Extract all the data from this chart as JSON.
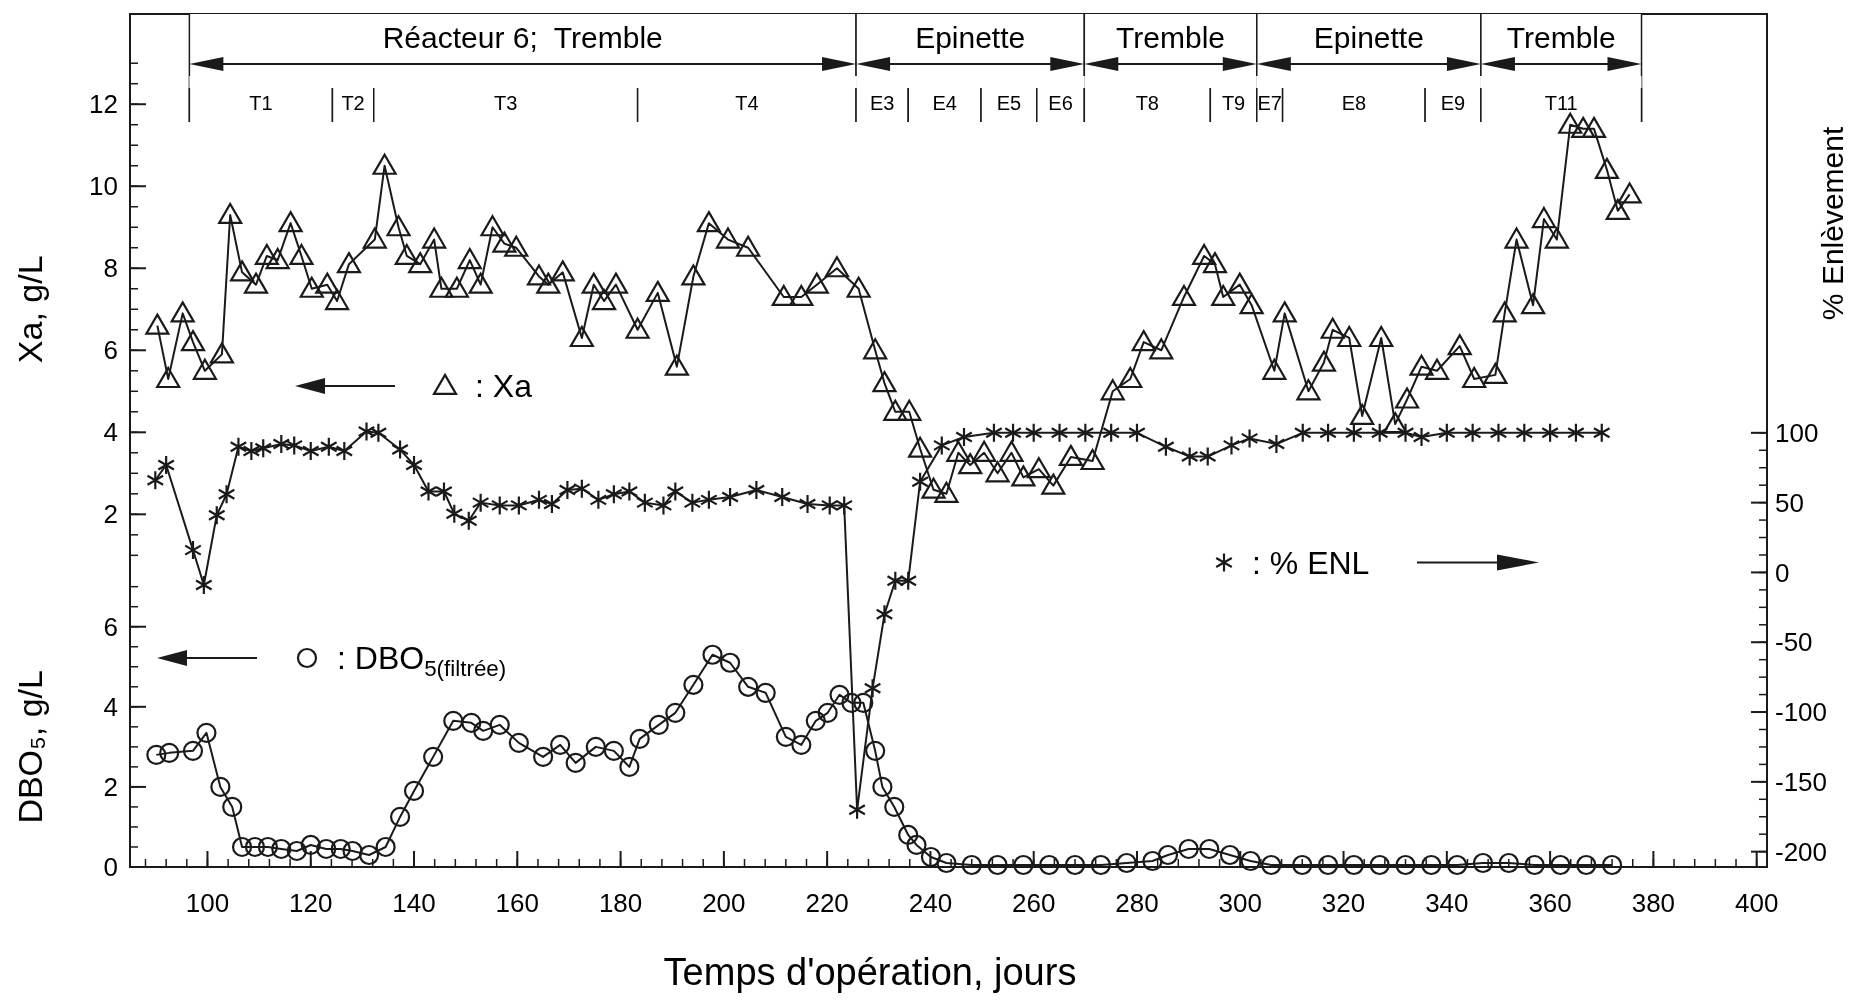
{
  "chart_data": {
    "type": "line",
    "xlabel": "Temps d'opération, jours",
    "ylabel": "Xa, g/L",
    "y3label": "DBO₅, g/L",
    "y2label": "% Enlèvement",
    "xlim": [
      85,
      402
    ],
    "xticks": [
      100,
      120,
      140,
      160,
      180,
      200,
      220,
      240,
      260,
      280,
      300,
      320,
      340,
      360,
      380,
      400
    ],
    "ylim": [
      -6.6,
      14.2
    ],
    "yticks": [
      2,
      4,
      6,
      8,
      10,
      12
    ],
    "y2lim": [
      -211,
      400
    ],
    "y2ticks": [
      -200,
      -150,
      -100,
      -50,
      0,
      50,
      100
    ],
    "y3lim": [
      0,
      21.3
    ],
    "y3ticks": [
      0,
      2,
      4,
      6
    ],
    "legend": "left",
    "grid": false,
    "line_style": "solid",
    "bands": [
      {
        "axis": "x",
        "from": 96.5,
        "to": 225.6,
        "label": "Réacteur 6;  Tremble",
        "color": "#ffffff"
      },
      {
        "axis": "x",
        "from": 225.6,
        "to": 269.8,
        "label": "Epinette",
        "color": "#ffffff"
      },
      {
        "axis": "x",
        "from": 269.8,
        "to": 303.2,
        "label": "Tremble",
        "color": "#ffffff"
      },
      {
        "axis": "x",
        "from": 303.2,
        "to": 346.6,
        "label": "Epinette",
        "color": "#ffffff"
      },
      {
        "axis": "x",
        "from": 346.6,
        "to": 377.7,
        "label": "Tremble",
        "color": "#ffffff"
      },
      {
        "axis": "x",
        "from": 96.5,
        "to": 124.2,
        "label": "T1",
        "color": "#ffffff"
      },
      {
        "axis": "x",
        "from": 124.2,
        "to": 132.2,
        "label": "T2",
        "color": "#ffffff"
      },
      {
        "axis": "x",
        "from": 132.2,
        "to": 183.3,
        "label": "T3",
        "color": "#ffffff"
      },
      {
        "axis": "x",
        "from": 183.3,
        "to": 225.6,
        "label": "T4",
        "color": "#ffffff"
      },
      {
        "axis": "x",
        "from": 225.6,
        "to": 235.7,
        "label": "E3",
        "color": "#ffffff"
      },
      {
        "axis": "x",
        "from": 235.7,
        "to": 249.8,
        "label": "E4",
        "color": "#ffffff"
      },
      {
        "axis": "x",
        "from": 249.8,
        "to": 260.6,
        "label": "E5",
        "color": "#ffffff"
      },
      {
        "axis": "x",
        "from": 260.6,
        "to": 269.8,
        "label": "E6",
        "color": "#ffffff"
      },
      {
        "axis": "x",
        "from": 269.8,
        "to": 294.2,
        "label": "T8",
        "color": "#ffffff"
      },
      {
        "axis": "x",
        "from": 294.2,
        "to": 303.2,
        "label": "T9",
        "color": "#ffffff"
      },
      {
        "axis": "x",
        "from": 303.2,
        "to": 308.2,
        "label": "E7",
        "color": "#ffffff"
      },
      {
        "axis": "x",
        "from": 308.2,
        "to": 335.8,
        "label": "E8",
        "color": "#ffffff"
      },
      {
        "axis": "x",
        "from": 335.8,
        "to": 346.6,
        "label": "E9",
        "color": "#ffffff"
      },
      {
        "axis": "x",
        "from": 346.6,
        "to": 377.7,
        "label": "T11",
        "color": "#ffffff"
      }
    ],
    "series": [
      {
        "name": ": Xa",
        "color": "#1a1a1a",
        "marker": "triangle",
        "axis": "y",
        "x": [
          90.3,
          92.4,
          95.2,
          97.2,
          99.5,
          102.8,
          104.4,
          106.7,
          109.4,
          111.5,
          113.6,
          116.1,
          118.2,
          120.2,
          123.2,
          125.1,
          127.4,
          132.4,
          134.3,
          137.0,
          138.6,
          141.2,
          143.9,
          145.3,
          148.3,
          150.8,
          152.9,
          155.2,
          157.5,
          159.8,
          164.2,
          166.0,
          168.8,
          172.5,
          174.8,
          176.8,
          179.1,
          183.3,
          187.2,
          190.9,
          194.1,
          197.1,
          200.8,
          204.7,
          211.6,
          215.0,
          218.0,
          221.9,
          226.1,
          229.3,
          231.1,
          233.2,
          235.9,
          238.0,
          240.6,
          243.1,
          245.4,
          247.7,
          250.4,
          253.0,
          255.7,
          258.0,
          261.0,
          263.8,
          267.2,
          271.4,
          275.3,
          278.7,
          281.3,
          284.7,
          289.1,
          293.0,
          295.1,
          296.7,
          299.9,
          302.2,
          306.6,
          308.6,
          313.2,
          316.2,
          317.9,
          321.1,
          323.6,
          327.3,
          330.0,
          332.3,
          335.1,
          338.1,
          342.5,
          345.3,
          349.4,
          351.2,
          353.5,
          356.7,
          358.8,
          361.3,
          363.9,
          366.4,
          368.5,
          371.0,
          373.1,
          375.4
        ],
        "values": [
          6.6,
          5.3,
          6.9,
          6.2,
          5.5,
          5.9,
          9.3,
          7.9,
          7.6,
          8.3,
          8.2,
          9.1,
          8.3,
          7.5,
          7.6,
          7.2,
          8.1,
          8.7,
          10.5,
          9.0,
          8.3,
          8.1,
          8.7,
          7.5,
          7.5,
          8.2,
          7.6,
          9.0,
          8.6,
          8.5,
          7.8,
          7.6,
          7.9,
          6.3,
          7.6,
          7.2,
          7.6,
          6.5,
          7.4,
          5.6,
          7.8,
          9.1,
          8.7,
          8.5,
          7.3,
          7.3,
          7.6,
          8.0,
          7.5,
          6.0,
          5.2,
          4.5,
          4.5,
          3.6,
          2.6,
          2.5,
          3.5,
          3.2,
          3.5,
          3.0,
          3.5,
          2.9,
          3.1,
          2.7,
          3.4,
          3.3,
          5.0,
          5.3,
          6.2,
          6.0,
          7.3,
          8.3,
          8.1,
          7.3,
          7.6,
          7.1,
          5.5,
          6.9,
          5.0,
          5.7,
          6.5,
          6.3,
          4.4,
          6.3,
          4.2,
          4.8,
          5.6,
          5.5,
          6.1,
          5.3,
          5.4,
          6.9,
          8.7,
          7.1,
          9.2,
          8.7,
          11.5,
          11.4,
          11.4,
          10.4,
          9.4,
          9.8
        ]
      },
      {
        "name": ": % ENL",
        "color": "#1a1a1a",
        "marker": "cross",
        "axis": "y2",
        "x": [
          89.9,
          92.0,
          97.2,
          99.3,
          101.8,
          103.7,
          106.0,
          108.5,
          110.8,
          114.3,
          116.8,
          120.0,
          123.5,
          126.5,
          130.8,
          133.1,
          137.3,
          140.0,
          142.8,
          145.8,
          147.8,
          150.6,
          152.9,
          156.6,
          160.3,
          164.2,
          166.7,
          169.7,
          172.5,
          175.7,
          178.7,
          181.7,
          184.7,
          188.3,
          190.6,
          193.9,
          197.1,
          201.2,
          206.3,
          211.3,
          216.2,
          220.5,
          223.3,
          225.8,
          228.8,
          231.1,
          233.2,
          235.7,
          238.0,
          242.2,
          246.5,
          252.3,
          256,
          260,
          265,
          270,
          275,
          280,
          285.6,
          290.2,
          293.7,
          298.3,
          301.8,
          307.0,
          312.1,
          317,
          322,
          327,
          332,
          335.1,
          340,
          345,
          350,
          355,
          360,
          365,
          370
        ],
        "values": [
          66,
          77,
          16,
          -9,
          41,
          56,
          90,
          87,
          89,
          92,
          91,
          87,
          90,
          87,
          101,
          100,
          88,
          77,
          58,
          58,
          42,
          37,
          50,
          48,
          48,
          52,
          49,
          59,
          60,
          52,
          56,
          58,
          50,
          48,
          58,
          50,
          52,
          54,
          59,
          54,
          49,
          48,
          48,
          -170,
          -83,
          -30,
          -6,
          -6,
          65,
          91,
          97,
          100,
          100,
          100,
          100,
          100,
          100,
          100,
          90,
          83,
          83,
          91,
          96,
          92,
          100,
          100,
          100,
          100,
          100,
          97,
          100,
          100,
          100,
          100,
          100,
          100,
          100
        ]
      },
      {
        "name": ": DBO$_{5(filtrée)}$",
        "color": "#1a1a1a",
        "marker": "circle",
        "axis": "y3",
        "x": [
          90.1,
          92.6,
          97.2,
          99.8,
          102.5,
          104.8,
          106.7,
          109.2,
          111.7,
          114.3,
          117.3,
          120.0,
          123.0,
          125.8,
          128.1,
          131.3,
          134.5,
          137.3,
          140.0,
          143.7,
          147.6,
          151.1,
          153.4,
          156.6,
          160.3,
          165.0,
          168.3,
          171.3,
          175.2,
          178.7,
          181.7,
          183.7,
          187.4,
          190.6,
          194.1,
          197.8,
          201.2,
          204.7,
          208.1,
          212.0,
          215.0,
          217.8,
          220.1,
          222.4,
          224.7,
          227.0,
          229.3,
          230.7,
          233.0,
          235.7,
          237.3,
          240.1,
          243.1,
          248,
          253,
          258,
          263,
          268,
          273,
          278,
          283,
          286,
          290,
          294,
          298,
          302,
          306,
          312,
          317,
          322,
          327,
          332,
          337,
          342,
          347,
          352,
          357,
          362,
          367,
          372
        ],
        "values": [
          2.8,
          2.85,
          2.9,
          3.35,
          2.0,
          1.5,
          0.5,
          0.5,
          0.5,
          0.45,
          0.4,
          0.55,
          0.45,
          0.45,
          0.4,
          0.3,
          0.5,
          1.25,
          1.9,
          2.75,
          3.65,
          3.6,
          3.4,
          3.55,
          3.1,
          2.75,
          3.05,
          2.6,
          3.0,
          2.9,
          2.5,
          3.2,
          3.55,
          3.85,
          4.55,
          5.3,
          5.1,
          4.5,
          4.35,
          3.25,
          3.05,
          3.65,
          3.85,
          4.3,
          4.1,
          4.1,
          2.9,
          2.0,
          1.5,
          0.8,
          0.55,
          0.25,
          0.1,
          0.05,
          0.05,
          0.05,
          0.05,
          0.05,
          0.05,
          0.1,
          0.15,
          0.3,
          0.45,
          0.45,
          0.3,
          0.15,
          0.05,
          0.05,
          0.05,
          0.05,
          0.05,
          0.05,
          0.05,
          0.05,
          0.1,
          0.1,
          0.05,
          0.05,
          0.05,
          0.05
        ]
      }
    ]
  }
}
